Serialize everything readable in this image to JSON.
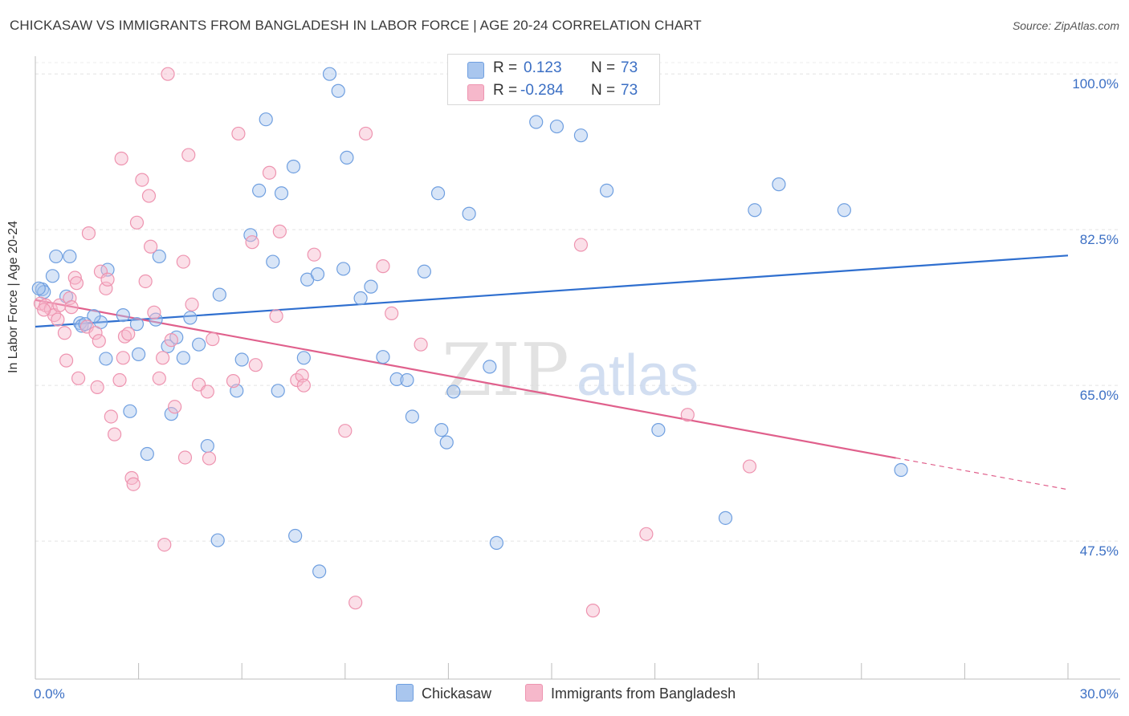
{
  "title": "CHICKASAW VS IMMIGRANTS FROM BANGLADESH IN LABOR FORCE | AGE 20-24 CORRELATION CHART",
  "source": "Source: ZipAtlas.com",
  "watermark": {
    "zip": "ZIP",
    "atlas": "atlas"
  },
  "legend_top": [
    {
      "r_label": "R =",
      "r_value": "0.123",
      "n_label": "N =",
      "n_value": "73",
      "color": "#a9c6ee"
    },
    {
      "r_label": "R =",
      "r_value": "-0.284",
      "n_label": "N =",
      "n_value": "73",
      "color": "#f6b8cb"
    }
  ],
  "chart_data": {
    "type": "scatter",
    "title": "CHICKASAW VS IMMIGRANTS FROM BANGLADESH IN LABOR FORCE | AGE 20-24 CORRELATION CHART",
    "xlabel": "",
    "ylabel": "In Labor Force | Age 20-24",
    "xlim": [
      0,
      30
    ],
    "ylim": [
      32,
      102
    ],
    "x_tick_labels": [
      "0.0%",
      "30.0%"
    ],
    "y_ticks": [
      47.5,
      65.0,
      82.5,
      100.0
    ],
    "y_tick_labels": [
      "47.5%",
      "65.0%",
      "82.5%",
      "100.0%"
    ],
    "grid": true,
    "legend_position": "bottom",
    "series": [
      {
        "name": "Chickasaw",
        "color": "#6f9fe0",
        "fill": "#a9c6ee",
        "trend": {
          "x0": 0,
          "y0": 71.6,
          "x1": 30,
          "y1": 79.6,
          "style": "solid",
          "line_color": "#2f6fcf"
        },
        "points": [
          [
            0.2,
            75.8
          ],
          [
            0.25,
            75.5
          ],
          [
            0.5,
            77.3
          ],
          [
            0.6,
            79.5
          ],
          [
            1.0,
            79.5
          ],
          [
            0.9,
            75.0
          ],
          [
            1.3,
            72.0
          ],
          [
            1.35,
            71.7
          ],
          [
            1.9,
            72.1
          ],
          [
            1.7,
            72.8
          ],
          [
            2.1,
            78.0
          ],
          [
            2.05,
            68.0
          ],
          [
            2.55,
            72.9
          ],
          [
            2.75,
            62.1
          ],
          [
            2.95,
            71.9
          ],
          [
            3.0,
            68.5
          ],
          [
            3.25,
            57.3
          ],
          [
            3.5,
            72.4
          ],
          [
            3.6,
            79.5
          ],
          [
            3.85,
            69.4
          ],
          [
            3.95,
            61.8
          ],
          [
            4.1,
            70.4
          ],
          [
            4.3,
            68.1
          ],
          [
            4.5,
            72.6
          ],
          [
            4.75,
            69.6
          ],
          [
            5.0,
            58.2
          ],
          [
            5.3,
            47.6
          ],
          [
            5.35,
            75.2
          ],
          [
            5.85,
            64.4
          ],
          [
            6.0,
            67.9
          ],
          [
            6.25,
            81.9
          ],
          [
            6.5,
            86.9
          ],
          [
            6.7,
            94.9
          ],
          [
            6.9,
            78.9
          ],
          [
            7.05,
            64.4
          ],
          [
            7.15,
            86.6
          ],
          [
            7.5,
            89.6
          ],
          [
            7.8,
            68.1
          ],
          [
            7.9,
            76.9
          ],
          [
            7.55,
            48.1
          ],
          [
            8.2,
            77.5
          ],
          [
            8.25,
            44.1
          ],
          [
            8.55,
            100.0
          ],
          [
            8.8,
            98.1
          ],
          [
            8.95,
            78.1
          ],
          [
            9.05,
            90.6
          ],
          [
            9.45,
            74.8
          ],
          [
            9.75,
            76.1
          ],
          [
            10.1,
            68.2
          ],
          [
            10.5,
            65.7
          ],
          [
            10.8,
            65.6
          ],
          [
            10.95,
            61.5
          ],
          [
            11.3,
            77.8
          ],
          [
            11.7,
            86.6
          ],
          [
            11.8,
            60.0
          ],
          [
            11.95,
            58.6
          ],
          [
            12.15,
            64.3
          ],
          [
            12.6,
            84.3
          ],
          [
            13.2,
            67.1
          ],
          [
            13.4,
            47.3
          ],
          [
            14.55,
            94.6
          ],
          [
            15.15,
            94.1
          ],
          [
            15.85,
            93.1
          ],
          [
            16.6,
            86.9
          ],
          [
            16.55,
            100.0
          ],
          [
            18.1,
            60.0
          ],
          [
            20.05,
            50.1
          ],
          [
            20.9,
            84.7
          ],
          [
            21.6,
            87.6
          ],
          [
            23.5,
            84.7
          ],
          [
            25.15,
            55.5
          ],
          [
            0.1,
            75.9
          ],
          [
            1.45,
            71.9
          ]
        ]
      },
      {
        "name": "Immigrants from Bangladesh",
        "color": "#ee94b0",
        "fill": "#f6b8cb",
        "trend": {
          "x0": 0,
          "y0": 74.6,
          "x1": 30,
          "y1": 53.3,
          "style": "solid-then-dashed",
          "solid_until_x": 25.0,
          "line_color": "#e0608c"
        },
        "points": [
          [
            0.15,
            74.2
          ],
          [
            0.3,
            74.0
          ],
          [
            0.45,
            73.6
          ],
          [
            0.55,
            72.9
          ],
          [
            0.7,
            74.0
          ],
          [
            0.65,
            72.4
          ],
          [
            0.85,
            70.9
          ],
          [
            0.9,
            67.8
          ],
          [
            1.0,
            74.8
          ],
          [
            1.05,
            73.8
          ],
          [
            1.15,
            77.1
          ],
          [
            1.2,
            76.5
          ],
          [
            1.25,
            65.8
          ],
          [
            1.5,
            71.6
          ],
          [
            1.55,
            82.1
          ],
          [
            1.75,
            70.9
          ],
          [
            1.8,
            64.8
          ],
          [
            1.85,
            70.0
          ],
          [
            1.9,
            77.8
          ],
          [
            2.05,
            75.9
          ],
          [
            2.1,
            76.9
          ],
          [
            2.2,
            61.5
          ],
          [
            2.3,
            59.5
          ],
          [
            2.45,
            65.6
          ],
          [
            2.5,
            90.5
          ],
          [
            2.55,
            68.1
          ],
          [
            2.6,
            70.5
          ],
          [
            2.7,
            70.8
          ],
          [
            2.8,
            54.6
          ],
          [
            2.85,
            53.9
          ],
          [
            2.95,
            83.3
          ],
          [
            3.1,
            88.1
          ],
          [
            3.2,
            76.7
          ],
          [
            3.3,
            86.3
          ],
          [
            3.35,
            80.6
          ],
          [
            3.45,
            73.2
          ],
          [
            3.6,
            65.8
          ],
          [
            3.7,
            68.1
          ],
          [
            3.75,
            47.1
          ],
          [
            3.85,
            100.0
          ],
          [
            3.95,
            70.1
          ],
          [
            4.05,
            62.6
          ],
          [
            4.3,
            78.9
          ],
          [
            4.35,
            56.9
          ],
          [
            4.45,
            90.9
          ],
          [
            4.55,
            74.1
          ],
          [
            4.75,
            65.1
          ],
          [
            5.0,
            64.3
          ],
          [
            5.05,
            56.8
          ],
          [
            5.15,
            70.2
          ],
          [
            5.75,
            65.5
          ],
          [
            5.9,
            93.3
          ],
          [
            6.3,
            81.1
          ],
          [
            6.4,
            67.3
          ],
          [
            6.8,
            88.9
          ],
          [
            7.0,
            72.8
          ],
          [
            7.1,
            82.3
          ],
          [
            7.6,
            65.6
          ],
          [
            7.75,
            66.1
          ],
          [
            7.8,
            65.0
          ],
          [
            8.1,
            79.7
          ],
          [
            9.0,
            59.9
          ],
          [
            9.3,
            40.6
          ],
          [
            9.6,
            93.3
          ],
          [
            10.1,
            78.4
          ],
          [
            10.35,
            73.1
          ],
          [
            11.2,
            69.6
          ],
          [
            15.85,
            80.8
          ],
          [
            16.2,
            39.7
          ],
          [
            17.75,
            48.3
          ],
          [
            18.95,
            61.7
          ],
          [
            20.75,
            55.9
          ],
          [
            0.25,
            73.5
          ]
        ]
      }
    ]
  }
}
